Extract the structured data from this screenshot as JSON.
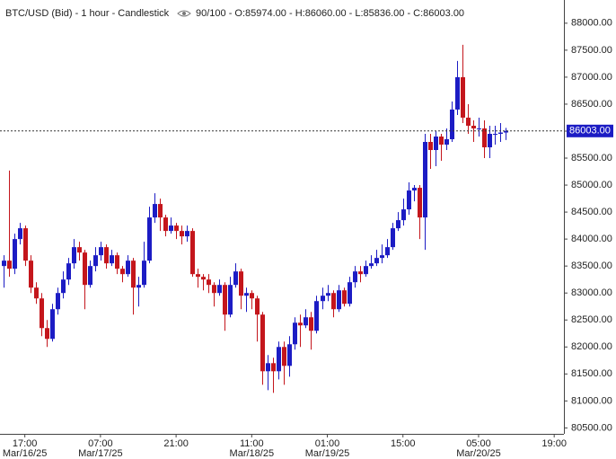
{
  "chart_data": {
    "type": "candlestick",
    "title": "BTC/USD (Bid) - 1 hour - Candlestick",
    "info": "90/100 - O:85974.00 - H:86060.00 - L:85836.00 - C:86003.00",
    "up_color": "#1c1cc4",
    "down_color": "#c4161c",
    "open": [
      83500,
      83600,
      83450,
      84000,
      84200,
      83600,
      83100,
      82900,
      82350,
      82150,
      82700,
      83000,
      83250,
      83550,
      83850,
      83750,
      83150,
      83500,
      83700,
      83850,
      83550,
      83700,
      83450,
      83350,
      83600,
      83100,
      83150,
      83600,
      84400,
      84650,
      84400,
      84150,
      84250,
      84150,
      84050,
      84150,
      83350,
      83300,
      83250,
      83150,
      83000,
      83150,
      82600,
      83150,
      83400,
      82950,
      83000,
      82900,
      82600,
      81550,
      81700,
      81550,
      82000,
      81650,
      82050,
      82450,
      82400,
      82550,
      82300,
      82850,
      82950,
      83000,
      82700,
      83050,
      82800,
      83200,
      83400,
      83350,
      83500,
      83550,
      83650,
      83700,
      83850,
      84200,
      84350,
      84550,
      84900,
      84950,
      84400,
      85800,
      85650,
      85900,
      85750,
      85850,
      86400,
      87000,
      86250,
      86100,
      86050,
      86050,
      85700,
      85950,
      85950,
      85974
    ],
    "high": [
      83700,
      85270,
      84100,
      84300,
      84250,
      83700,
      83200,
      83000,
      82500,
      82800,
      83100,
      83400,
      83650,
      84000,
      83950,
      83800,
      83600,
      83850,
      83950,
      83900,
      83800,
      83750,
      83500,
      83700,
      83650,
      83300,
      83950,
      84600,
      84850,
      84750,
      84450,
      84400,
      84300,
      84250,
      84250,
      84200,
      83450,
      83350,
      83350,
      83200,
      83250,
      83200,
      83300,
      83550,
      83450,
      83100,
      83050,
      82950,
      82650,
      81850,
      81800,
      82100,
      82100,
      82200,
      82550,
      82600,
      82700,
      82650,
      82950,
      83100,
      83150,
      83050,
      83150,
      83100,
      83300,
      83500,
      83500,
      83600,
      83700,
      83800,
      83900,
      84000,
      84300,
      84500,
      84750,
      85050,
      85000,
      85000,
      85950,
      85950,
      86000,
      85950,
      86050,
      86550,
      87300,
      87600,
      86500,
      86200,
      86250,
      86200,
      86100,
      86100,
      86150,
      86060
    ],
    "low": [
      83100,
      83300,
      83350,
      83900,
      83500,
      83000,
      82800,
      82200,
      82000,
      82100,
      82600,
      82900,
      83150,
      83450,
      83600,
      82700,
      83100,
      83400,
      83600,
      83450,
      83500,
      83350,
      83200,
      83300,
      82600,
      82750,
      83100,
      83550,
      84300,
      84150,
      84050,
      84100,
      84000,
      83900,
      83950,
      83300,
      83100,
      83050,
      83000,
      82750,
      82950,
      82300,
      82550,
      83100,
      82700,
      82650,
      82700,
      82100,
      81300,
      81200,
      81150,
      81400,
      81300,
      81450,
      81950,
      82000,
      82350,
      81950,
      82250,
      82700,
      82850,
      82550,
      82650,
      82750,
      82750,
      83100,
      83200,
      83300,
      83450,
      83500,
      83550,
      83650,
      83800,
      84150,
      84250,
      84450,
      84700,
      84000,
      83800,
      85300,
      85350,
      85450,
      85650,
      85800,
      86300,
      86150,
      85950,
      85800,
      85900,
      85500,
      85500,
      85750,
      85800,
      85836
    ],
    "close": [
      83600,
      83450,
      84000,
      84200,
      83600,
      83100,
      82900,
      82350,
      82150,
      82700,
      83000,
      83250,
      83550,
      83850,
      83750,
      83150,
      83500,
      83700,
      83850,
      83550,
      83700,
      83450,
      83350,
      83600,
      83100,
      83150,
      83600,
      84400,
      84650,
      84400,
      84150,
      84250,
      84150,
      84050,
      84150,
      83350,
      83300,
      83250,
      83150,
      83000,
      83150,
      82600,
      83150,
      83400,
      82950,
      83000,
      82900,
      82600,
      81550,
      81700,
      81550,
      82000,
      81650,
      82050,
      82450,
      82400,
      82550,
      82300,
      82850,
      82950,
      83000,
      82700,
      83050,
      82800,
      83200,
      83400,
      83350,
      83500,
      83550,
      83650,
      83700,
      83850,
      84200,
      84350,
      84550,
      84900,
      84950,
      84400,
      85800,
      85650,
      85900,
      85750,
      85850,
      86400,
      87000,
      86250,
      86100,
      86050,
      86050,
      85700,
      85950,
      85950,
      85974,
      86003
    ],
    "xlim": [
      -0.6,
      103.8
    ],
    "xticks": [
      {
        "value": 4,
        "label": "17:00",
        "date": "Mar/16/25"
      },
      {
        "value": 18,
        "label": "07:00",
        "date": "Mar/17/25"
      },
      {
        "value": 32,
        "label": "21:00"
      },
      {
        "value": 46,
        "label": "11:00",
        "date": "Mar/18/25"
      },
      {
        "value": 60,
        "label": "01:00",
        "date": "Mar/19/25"
      },
      {
        "value": 74,
        "label": "15:00"
      },
      {
        "value": 88,
        "label": "05:00",
        "date": "Mar/20/25"
      },
      {
        "value": 102,
        "label": "19:00"
      }
    ],
    "ylim": [
      80390,
      88430
    ],
    "yticks": [
      {
        "value": 80500,
        "label": "80500.00"
      },
      {
        "value": 81000,
        "label": "81000.00"
      },
      {
        "value": 81500,
        "label": "81500.00"
      },
      {
        "value": 82000,
        "label": "82000.00"
      },
      {
        "value": 82500,
        "label": "82500.00"
      },
      {
        "value": 83000,
        "label": "83000.00"
      },
      {
        "value": 83500,
        "label": "83500.00"
      },
      {
        "value": 84000,
        "label": "84000.00"
      },
      {
        "value": 84500,
        "label": "84500.00"
      },
      {
        "value": 85000,
        "label": "85000.00"
      },
      {
        "value": 85500,
        "label": "85500.00"
      },
      {
        "value": 86000,
        "label": "86000.00"
      },
      {
        "value": 86500,
        "label": "86500.00"
      },
      {
        "value": 87000,
        "label": "87000.00"
      },
      {
        "value": 87500,
        "label": "87500.00"
      },
      {
        "value": 88000,
        "label": "88000.00"
      }
    ],
    "price_label": {
      "value": 86003,
      "label": "86003.00"
    }
  }
}
